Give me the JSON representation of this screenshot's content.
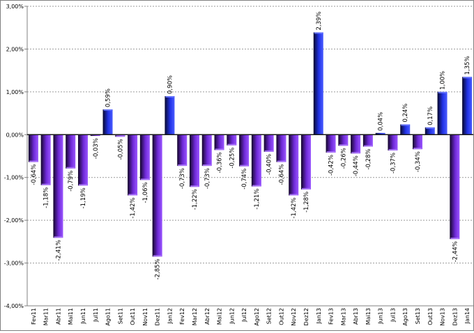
{
  "chart_data": {
    "type": "bar",
    "categories": [
      "Fev11",
      "Mar11",
      "Abr11",
      "Mai11",
      "Jun11",
      "Jul11",
      "Ago11",
      "Set11",
      "Out11",
      "Nov11",
      "Dez11",
      "Jan12",
      "Fev12",
      "Mar12",
      "Abr12",
      "Mai12",
      "Jun12",
      "Jul12",
      "Ago12",
      "Set12",
      "Out12",
      "Nov12",
      "Dez12",
      "Jan13",
      "Fev13",
      "Mar13",
      "Abr13",
      "Mai13",
      "Jun13",
      "Jul13",
      "Ago13",
      "Set13",
      "Out13",
      "Nov13",
      "Dez13",
      "Jan14"
    ],
    "values": [
      -0.64,
      -1.18,
      -2.41,
      -0.79,
      -1.19,
      -0.03,
      0.59,
      -0.05,
      -1.42,
      -1.06,
      -2.85,
      0.9,
      -0.73,
      -1.22,
      -0.73,
      -0.36,
      -0.25,
      -0.74,
      -1.21,
      -0.4,
      -0.64,
      -1.42,
      -1.28,
      2.39,
      -0.42,
      -0.26,
      -0.44,
      -0.28,
      0.04,
      -0.37,
      0.24,
      -0.34,
      0.17,
      1.0,
      -2.44,
      1.35
    ],
    "data_labels": [
      "-0,64%",
      "-1,18%",
      "-2,41%",
      "-0,79%",
      "-1,19%",
      "-0,03%",
      "0,59%",
      "-0,05%",
      "-1,42%",
      "-1,06%",
      "-2,85%",
      "0,90%",
      "-0,73%",
      "-1,22%",
      "-0,73%",
      "-0,36%",
      "-0,25%",
      "-0,74%",
      "-1,21%",
      "-0,40%",
      "-0,64%",
      "-1,42%",
      "-1,28%",
      "2,39%",
      "-0,42%",
      "-0,26%",
      "-0,44%",
      "-0,28%",
      "0,04%",
      "-0,37%",
      "0,24%",
      "-0,34%",
      "0,17%",
      "1,00%",
      "-2,44%",
      "1,35%"
    ],
    "ylim": [
      -4,
      3
    ],
    "yticks": [
      -4,
      -3,
      -2,
      -1,
      0,
      1,
      2,
      3
    ],
    "ytick_labels": [
      "-4,00%",
      "-3,00%",
      "-2,00%",
      "-1,00%",
      "0,00%",
      "1,00%",
      "2,00%",
      "3,00%"
    ],
    "grid": true,
    "title": "",
    "xlabel": "",
    "ylabel": "",
    "colors": {
      "positive_dark": "#0a0a3a",
      "positive_light": "#2a3dff",
      "negative_dark": "#1a0833",
      "negative_light": "#8a3dff",
      "grid": "#9a9a9a",
      "axis": "#808080"
    }
  }
}
